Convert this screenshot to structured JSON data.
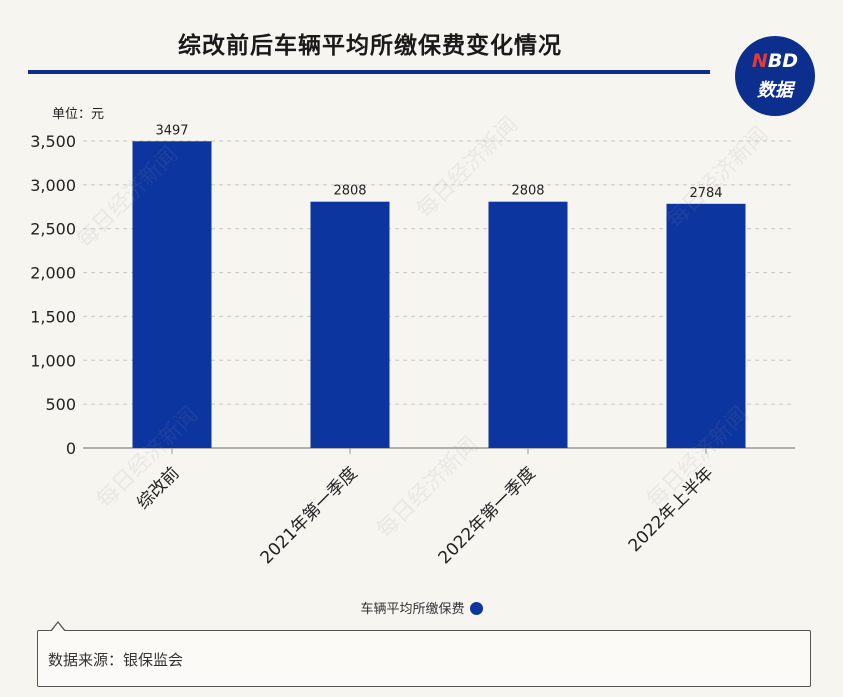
{
  "header": {
    "title": "综改前后车辆平均所缴保费变化情况",
    "logo_line1_n": "N",
    "logo_line1_rest": "BD",
    "logo_line2": "数据"
  },
  "watermark": "每日经济新闻",
  "legend": {
    "label": "车辆平均所缴保费"
  },
  "footer": {
    "source": "数据来源：银保监会"
  },
  "colors": {
    "bar": "#0d35a0",
    "accent": "#0c2f8e",
    "background": "#f7f5f0"
  },
  "chart_data": {
    "type": "bar",
    "unit_label": "单位：元",
    "categories": [
      "综改前",
      "2021年第一季度",
      "2022年第一季度",
      "2022年上半年"
    ],
    "series": [
      {
        "name": "车辆平均所缴保费",
        "values": [
          3497,
          2808,
          2808,
          2784
        ]
      }
    ],
    "yticks": [
      "0",
      "500",
      "1,000",
      "1,500",
      "2,000",
      "2,500",
      "3,000",
      "3,500"
    ],
    "ylim": [
      0,
      3500
    ],
    "grid": true,
    "legend_position": "bottom"
  }
}
